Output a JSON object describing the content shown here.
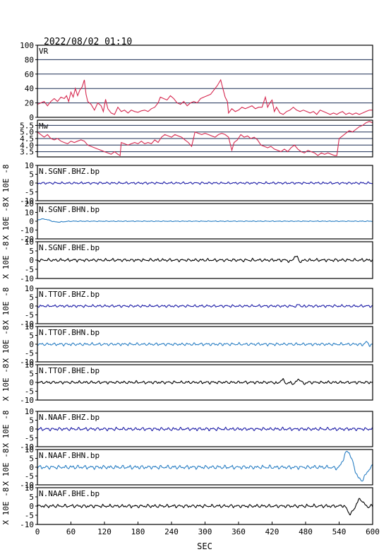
{
  "header": {
    "title": "2022/08/02 01:10"
  },
  "chart_data": {
    "type": "line",
    "title": "2022/08/02 01:10",
    "xlabel": "SEC",
    "xlim": [
      0,
      600
    ],
    "xticks": [
      "0",
      "60",
      "120",
      "180",
      "240",
      "300",
      "360",
      "420",
      "480",
      "540",
      "600"
    ],
    "panels": [
      {
        "label": "VR",
        "ylabel": "",
        "ylim": [
          0,
          100
        ],
        "yticks": [
          "0",
          "20",
          "40",
          "60",
          "80",
          "100"
        ],
        "grid_values": [
          20,
          40,
          60,
          80
        ],
        "color": "#d6284f",
        "points": [
          [
            0,
            18
          ],
          [
            6,
            20
          ],
          [
            12,
            22
          ],
          [
            18,
            16
          ],
          [
            24,
            22
          ],
          [
            30,
            26
          ],
          [
            36,
            22
          ],
          [
            42,
            28
          ],
          [
            48,
            26
          ],
          [
            52,
            30
          ],
          [
            56,
            22
          ],
          [
            60,
            35
          ],
          [
            64,
            28
          ],
          [
            68,
            40
          ],
          [
            72,
            30
          ],
          [
            76,
            38
          ],
          [
            80,
            42
          ],
          [
            84,
            52
          ],
          [
            87,
            32
          ],
          [
            90,
            22
          ],
          [
            96,
            18
          ],
          [
            102,
            10
          ],
          [
            108,
            20
          ],
          [
            114,
            16
          ],
          [
            118,
            8
          ],
          [
            122,
            25
          ],
          [
            126,
            12
          ],
          [
            132,
            6
          ],
          [
            138,
            4
          ],
          [
            144,
            14
          ],
          [
            150,
            8
          ],
          [
            156,
            10
          ],
          [
            162,
            6
          ],
          [
            168,
            10
          ],
          [
            174,
            8
          ],
          [
            180,
            7
          ],
          [
            186,
            9
          ],
          [
            192,
            10
          ],
          [
            198,
            8
          ],
          [
            204,
            12
          ],
          [
            210,
            14
          ],
          [
            216,
            20
          ],
          [
            220,
            28
          ],
          [
            226,
            26
          ],
          [
            232,
            24
          ],
          [
            238,
            30
          ],
          [
            244,
            26
          ],
          [
            250,
            20
          ],
          [
            256,
            18
          ],
          [
            262,
            22
          ],
          [
            268,
            16
          ],
          [
            274,
            20
          ],
          [
            280,
            22
          ],
          [
            286,
            20
          ],
          [
            292,
            26
          ],
          [
            298,
            28
          ],
          [
            304,
            30
          ],
          [
            310,
            32
          ],
          [
            316,
            38
          ],
          [
            322,
            44
          ],
          [
            328,
            52
          ],
          [
            332,
            40
          ],
          [
            336,
            28
          ],
          [
            340,
            22
          ],
          [
            342,
            6
          ],
          [
            348,
            12
          ],
          [
            354,
            8
          ],
          [
            360,
            10
          ],
          [
            366,
            14
          ],
          [
            372,
            12
          ],
          [
            378,
            14
          ],
          [
            384,
            16
          ],
          [
            390,
            12
          ],
          [
            396,
            14
          ],
          [
            402,
            14
          ],
          [
            408,
            28
          ],
          [
            412,
            14
          ],
          [
            416,
            20
          ],
          [
            420,
            24
          ],
          [
            424,
            8
          ],
          [
            428,
            14
          ],
          [
            434,
            6
          ],
          [
            440,
            4
          ],
          [
            446,
            8
          ],
          [
            452,
            10
          ],
          [
            458,
            14
          ],
          [
            464,
            10
          ],
          [
            470,
            8
          ],
          [
            476,
            10
          ],
          [
            482,
            8
          ],
          [
            488,
            6
          ],
          [
            494,
            8
          ],
          [
            500,
            4
          ],
          [
            506,
            10
          ],
          [
            512,
            8
          ],
          [
            518,
            6
          ],
          [
            524,
            4
          ],
          [
            530,
            6
          ],
          [
            536,
            4
          ],
          [
            540,
            6
          ],
          [
            546,
            8
          ],
          [
            552,
            4
          ],
          [
            558,
            6
          ],
          [
            564,
            4
          ],
          [
            570,
            6
          ],
          [
            576,
            4
          ],
          [
            582,
            6
          ],
          [
            588,
            8
          ],
          [
            594,
            10
          ],
          [
            600,
            10
          ]
        ]
      },
      {
        "label": "Mw",
        "ylabel": "",
        "ylim": [
          3.1,
          5.9
        ],
        "yticks": [
          "3.5",
          "4.0",
          "4.5",
          "5.0",
          "5.5"
        ],
        "grid_values": [
          3.5,
          4.0,
          4.5,
          5.0,
          5.5
        ],
        "color": "#d6284f",
        "points": [
          [
            0,
            5.0
          ],
          [
            6,
            4.8
          ],
          [
            12,
            4.6
          ],
          [
            18,
            4.8
          ],
          [
            24,
            4.5
          ],
          [
            30,
            4.4
          ],
          [
            36,
            4.5
          ],
          [
            42,
            4.3
          ],
          [
            48,
            4.2
          ],
          [
            54,
            4.1
          ],
          [
            60,
            4.3
          ],
          [
            66,
            4.2
          ],
          [
            72,
            4.3
          ],
          [
            78,
            4.4
          ],
          [
            84,
            4.3
          ],
          [
            90,
            4.0
          ],
          [
            96,
            3.9
          ],
          [
            102,
            3.8
          ],
          [
            108,
            3.7
          ],
          [
            114,
            3.6
          ],
          [
            120,
            3.5
          ],
          [
            126,
            3.4
          ],
          [
            132,
            3.3
          ],
          [
            138,
            3.5
          ],
          [
            144,
            3.3
          ],
          [
            148,
            3.2
          ],
          [
            150,
            4.2
          ],
          [
            156,
            4.1
          ],
          [
            162,
            4.0
          ],
          [
            168,
            4.1
          ],
          [
            174,
            4.2
          ],
          [
            180,
            4.1
          ],
          [
            186,
            4.3
          ],
          [
            192,
            4.1
          ],
          [
            198,
            4.2
          ],
          [
            204,
            4.1
          ],
          [
            210,
            4.4
          ],
          [
            216,
            4.2
          ],
          [
            222,
            4.6
          ],
          [
            228,
            4.8
          ],
          [
            234,
            4.7
          ],
          [
            240,
            4.6
          ],
          [
            246,
            4.8
          ],
          [
            252,
            4.7
          ],
          [
            258,
            4.6
          ],
          [
            264,
            4.4
          ],
          [
            270,
            4.2
          ],
          [
            276,
            3.9
          ],
          [
            282,
            5.0
          ],
          [
            288,
            4.9
          ],
          [
            294,
            4.8
          ],
          [
            300,
            4.9
          ],
          [
            306,
            4.8
          ],
          [
            312,
            4.7
          ],
          [
            318,
            4.6
          ],
          [
            324,
            4.8
          ],
          [
            330,
            4.9
          ],
          [
            336,
            4.8
          ],
          [
            342,
            4.6
          ],
          [
            348,
            3.6
          ],
          [
            352,
            4.2
          ],
          [
            358,
            4.4
          ],
          [
            364,
            4.8
          ],
          [
            370,
            4.6
          ],
          [
            376,
            4.7
          ],
          [
            382,
            4.5
          ],
          [
            388,
            4.6
          ],
          [
            394,
            4.4
          ],
          [
            400,
            4.0
          ],
          [
            406,
            3.9
          ],
          [
            412,
            3.8
          ],
          [
            418,
            3.9
          ],
          [
            424,
            3.7
          ],
          [
            430,
            3.6
          ],
          [
            436,
            3.5
          ],
          [
            442,
            3.7
          ],
          [
            448,
            3.5
          ],
          [
            454,
            3.8
          ],
          [
            460,
            4.0
          ],
          [
            466,
            3.7
          ],
          [
            472,
            3.5
          ],
          [
            478,
            3.4
          ],
          [
            484,
            3.6
          ],
          [
            490,
            3.5
          ],
          [
            496,
            3.4
          ],
          [
            502,
            3.2
          ],
          [
            508,
            3.4
          ],
          [
            514,
            3.3
          ],
          [
            520,
            3.4
          ],
          [
            526,
            3.3
          ],
          [
            532,
            3.2
          ],
          [
            536,
            3.2
          ],
          [
            540,
            4.5
          ],
          [
            546,
            4.7
          ],
          [
            552,
            4.9
          ],
          [
            558,
            5.1
          ],
          [
            564,
            5.0
          ],
          [
            570,
            5.2
          ],
          [
            576,
            5.4
          ],
          [
            582,
            5.5
          ],
          [
            588,
            5.7
          ],
          [
            594,
            5.8
          ],
          [
            600,
            5.7
          ]
        ]
      },
      {
        "label": "N.SGNF.BHZ.bp",
        "ylabel": "X 10E -8",
        "ylim": [
          -10,
          10
        ],
        "yticks": [
          "-10",
          "-5",
          "0",
          "5",
          "10"
        ],
        "color": "#1a1aa6",
        "wave": {
          "base": 0.35,
          "events": []
        }
      },
      {
        "label": "N.SGNF.BHN.bp",
        "ylabel": "X 10E -8",
        "ylim": [
          -20,
          20
        ],
        "yticks": [
          "-20",
          "-10",
          "0",
          "10",
          "20"
        ],
        "color": "#2a7fc4",
        "wave": {
          "base": 0.25,
          "events": [
            [
              10,
              2.5,
              30,
              1
            ]
          ]
        }
      },
      {
        "label": "N.SGNF.BHE.bp",
        "ylabel": "X 10E -8",
        "ylim": [
          -10,
          10
        ],
        "yticks": [
          "-10",
          "-5",
          "0",
          "5",
          "10"
        ],
        "color": "#000000",
        "wave": {
          "base": 0.45,
          "events": [
            [
              462,
              2.2,
              10,
              1
            ]
          ]
        }
      },
      {
        "label": "N.TTOF.BHZ.bp",
        "ylabel": "X 10E -8",
        "ylim": [
          -10,
          10
        ],
        "yticks": [
          "-10",
          "-5",
          "0",
          "5",
          "10"
        ],
        "color": "#1a1aa6",
        "wave": {
          "base": 0.4,
          "events": [
            [
              468,
              1.2,
              6,
              1
            ]
          ]
        }
      },
      {
        "label": "N.TTOF.BHN.bp",
        "ylabel": "X 10E -8",
        "ylim": [
          -10,
          10
        ],
        "yticks": [
          "-10",
          "-5",
          "0",
          "5",
          "10"
        ],
        "color": "#2a7fc4",
        "wave": {
          "base": 0.45,
          "events": [
            [
              588,
              1.2,
              8,
              1
            ]
          ]
        }
      },
      {
        "label": "N.TTOF.BHE.bp",
        "ylabel": "X 10E -8",
        "ylim": [
          -10,
          10
        ],
        "yticks": [
          "-10",
          "-5",
          "0",
          "5",
          "10"
        ],
        "color": "#000000",
        "wave": {
          "base": 0.45,
          "events": [
            [
              438,
              1.5,
              10,
              1
            ],
            [
              468,
              1.8,
              10,
              1
            ]
          ]
        }
      },
      {
        "label": "N.NAAF.BHZ.bp",
        "ylabel": "X 10E -8",
        "ylim": [
          -10,
          10
        ],
        "yticks": [
          "-10",
          "-5",
          "0",
          "5",
          "10"
        ],
        "color": "#1a1aa6",
        "wave": {
          "base": 0.5,
          "events": []
        }
      },
      {
        "label": "N.NAAF.BHN.bp",
        "ylabel": "X 10E -8",
        "ylim": [
          -10,
          10
        ],
        "yticks": [
          "-10",
          "-5",
          "0",
          "5",
          "10"
        ],
        "color": "#2a7fc4",
        "wave": {
          "base": 0.6,
          "events": [
            [
              555,
              8.5,
              14,
              2
            ],
            [
              580,
              -7,
              16,
              2
            ]
          ]
        }
      },
      {
        "label": "N.NAAF.BHE.bp",
        "ylabel": "X 10E -8",
        "ylim": [
          -10,
          10
        ],
        "yticks": [
          "-10",
          "-5",
          "0",
          "5",
          "10"
        ],
        "color": "#000000",
        "wave": {
          "base": 0.5,
          "events": [
            [
              560,
              -4,
              10,
              2
            ],
            [
              578,
              3.5,
              10,
              2
            ]
          ]
        }
      }
    ]
  }
}
